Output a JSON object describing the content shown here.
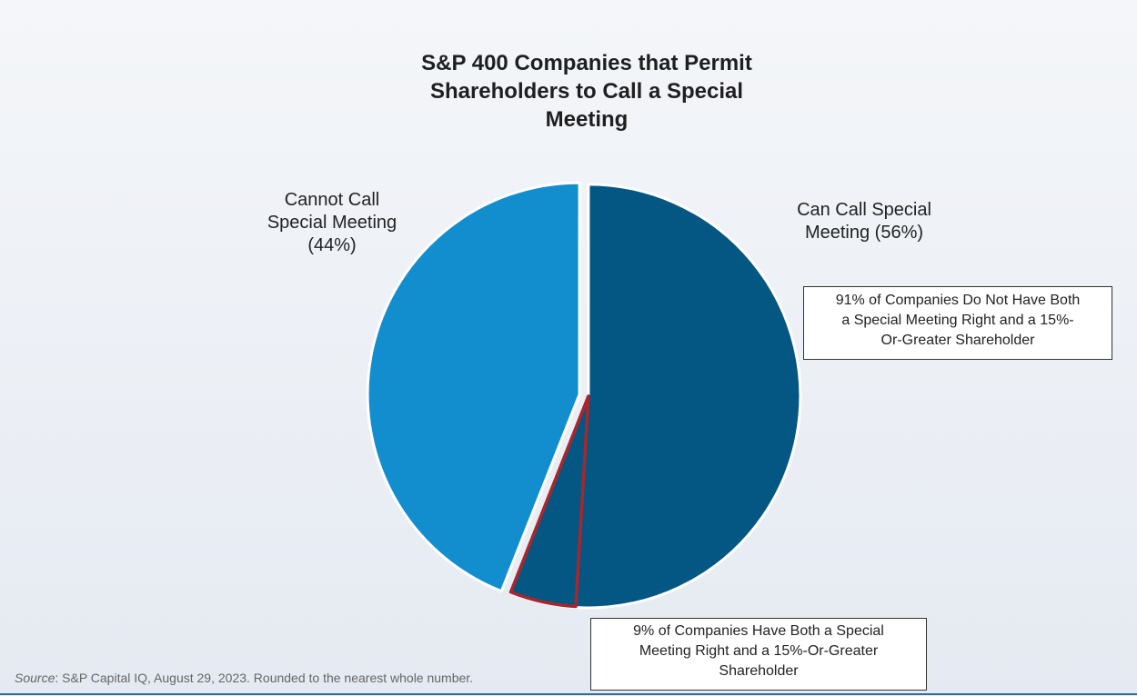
{
  "chart_data": {
    "type": "pie",
    "title_lines": [
      "S&P 400 Companies that Permit",
      "Shareholders to Call a Special",
      "Meeting"
    ],
    "slices": [
      {
        "name": "Can Call Special Meeting",
        "value": 56,
        "color": "#035782",
        "label_lines": [
          "Can Call Special",
          "Meeting (56%)"
        ]
      },
      {
        "name": "Cannot Call Special Meeting",
        "value": 44,
        "color": "#128ECF",
        "label_lines": [
          "Cannot Call",
          "Special Meeting",
          "(44%)"
        ]
      }
    ],
    "sub_breakdown": {
      "parent": "Can Call Special Meeting",
      "highlight_share": 9,
      "highlight_outline_color": "#A8262C",
      "callouts": {
        "remaining": [
          "91% of Companies Do Not Have Both",
          "a Special Meeting Right and a 15%-",
          "Or-Greater Shareholder"
        ],
        "highlight": [
          "9% of Companies Have Both a Special",
          "Meeting Right and a 15%-Or-Greater",
          "Shareholder"
        ]
      }
    }
  },
  "source": {
    "prefix": "Source",
    "text": ": S&P Capital IQ, August 29, 2023. Rounded to the nearest whole number."
  }
}
